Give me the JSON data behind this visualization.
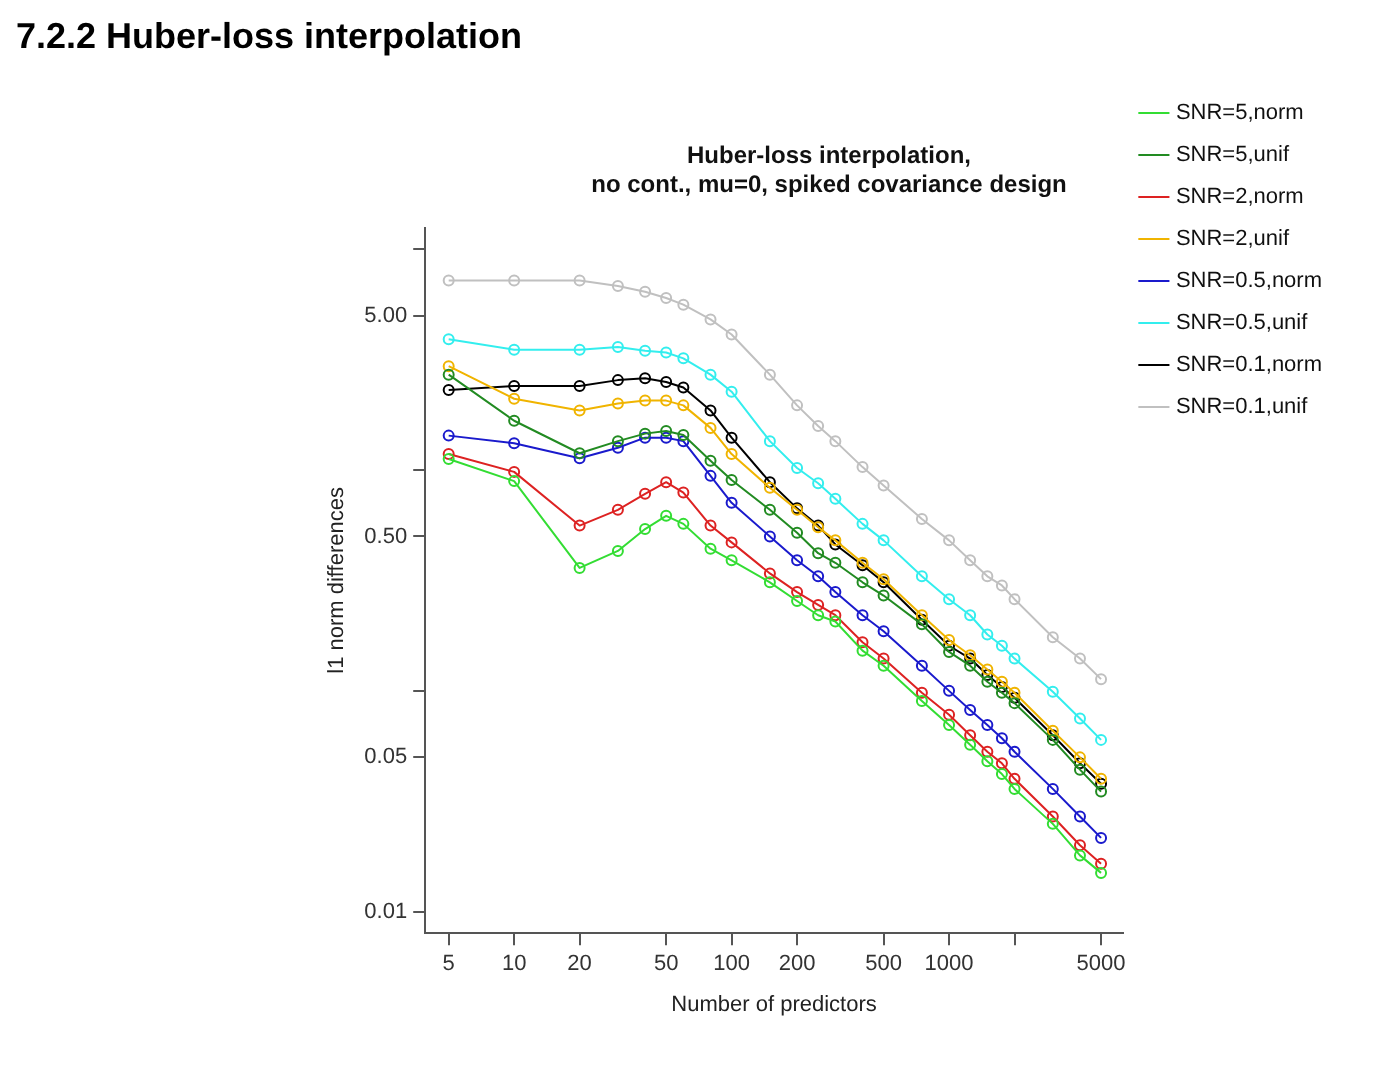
{
  "chart_data": {
    "type": "line",
    "title": "Huber-loss interpolation,\nno cont., mu=0, spiked covariance design",
    "annotations": [
      "7.2.2 Huber-loss interpolation"
    ],
    "xlabel": "Number of predictors",
    "ylabel": "l1 norm differences",
    "log": "xy",
    "grid": false,
    "legend": "right",
    "marker": "circle",
    "line_style": "solid",
    "x": [
      5,
      10,
      20,
      30,
      40,
      50,
      60,
      80,
      100,
      150,
      200,
      250,
      300,
      400,
      500,
      750,
      1000,
      1250,
      1500,
      1750,
      2000,
      3000,
      4000,
      5000
    ],
    "xlim": [
      3.9,
      6300
    ],
    "xticks": [
      5,
      10,
      20,
      50,
      100,
      200,
      500,
      1000,
      {
        "value": 2000,
        "label": null
      },
      5000
    ],
    "ylim": [
      0.008,
      12.5
    ],
    "yticks": [
      0.01,
      0.05,
      {
        "value": 0.1,
        "label": null
      },
      {
        "value": 0.5,
        "label": "0.50"
      },
      {
        "value": 1,
        "label": null
      },
      {
        "value": 5,
        "label": "5.00"
      },
      {
        "value": 10,
        "label": null
      }
    ],
    "series": [
      {
        "name": "SNR=5,norm",
        "color": "#33dd33",
        "values": [
          1.12,
          0.89,
          0.36,
          0.43,
          0.54,
          0.62,
          0.57,
          0.44,
          0.39,
          0.31,
          0.255,
          0.22,
          0.206,
          0.152,
          0.13,
          0.09,
          0.07,
          0.057,
          0.048,
          0.042,
          0.036,
          0.025,
          0.018,
          0.015
        ]
      },
      {
        "name": "SNR=5,unif",
        "color": "#228b22",
        "values": [
          2.7,
          1.67,
          1.19,
          1.35,
          1.46,
          1.5,
          1.44,
          1.1,
          0.9,
          0.66,
          0.52,
          0.42,
          0.38,
          0.31,
          0.27,
          0.2,
          0.15,
          0.13,
          0.11,
          0.098,
          0.088,
          0.06,
          0.044,
          0.035
        ]
      },
      {
        "name": "SNR=2,norm",
        "color": "#dd2222",
        "values": [
          1.18,
          0.98,
          0.56,
          0.66,
          0.78,
          0.88,
          0.79,
          0.56,
          0.47,
          0.34,
          0.28,
          0.245,
          0.22,
          0.166,
          0.14,
          0.098,
          0.078,
          0.063,
          0.053,
          0.047,
          0.04,
          0.027,
          0.02,
          0.0165
        ]
      },
      {
        "name": "SNR=2,unif",
        "color": "#f0b400",
        "values": [
          2.95,
          2.1,
          1.86,
          2.0,
          2.06,
          2.06,
          1.96,
          1.55,
          1.18,
          0.83,
          0.66,
          0.55,
          0.48,
          0.38,
          0.32,
          0.22,
          0.17,
          0.145,
          0.125,
          0.11,
          0.098,
          0.066,
          0.05,
          0.04
        ]
      },
      {
        "name": "SNR=0.5,norm",
        "color": "#1a1acc",
        "values": [
          1.43,
          1.32,
          1.13,
          1.26,
          1.4,
          1.4,
          1.35,
          0.94,
          0.71,
          0.5,
          0.39,
          0.33,
          0.28,
          0.22,
          0.186,
          0.13,
          0.1,
          0.082,
          0.07,
          0.061,
          0.053,
          0.036,
          0.027,
          0.0216
        ]
      },
      {
        "name": "SNR=0.5,unif",
        "color": "#33eeee",
        "values": [
          3.9,
          3.5,
          3.5,
          3.6,
          3.46,
          3.4,
          3.2,
          2.7,
          2.26,
          1.35,
          1.02,
          0.87,
          0.74,
          0.57,
          0.48,
          0.33,
          0.26,
          0.22,
          0.18,
          0.16,
          0.14,
          0.099,
          0.075,
          0.06
        ]
      },
      {
        "name": "SNR=0.1,norm",
        "color": "#000000",
        "values": [
          2.3,
          2.4,
          2.4,
          2.55,
          2.6,
          2.5,
          2.36,
          1.86,
          1.4,
          0.88,
          0.67,
          0.56,
          0.46,
          0.37,
          0.31,
          0.21,
          0.16,
          0.14,
          0.118,
          0.104,
          0.093,
          0.063,
          0.047,
          0.038
        ]
      },
      {
        "name": "SNR=0.1,unif",
        "color": "#c0c0c0",
        "values": [
          7.2,
          7.2,
          7.2,
          6.8,
          6.4,
          6.0,
          5.6,
          4.8,
          4.1,
          2.7,
          1.96,
          1.58,
          1.35,
          1.03,
          0.85,
          0.6,
          0.48,
          0.39,
          0.33,
          0.3,
          0.26,
          0.175,
          0.14,
          0.113
        ]
      }
    ]
  }
}
